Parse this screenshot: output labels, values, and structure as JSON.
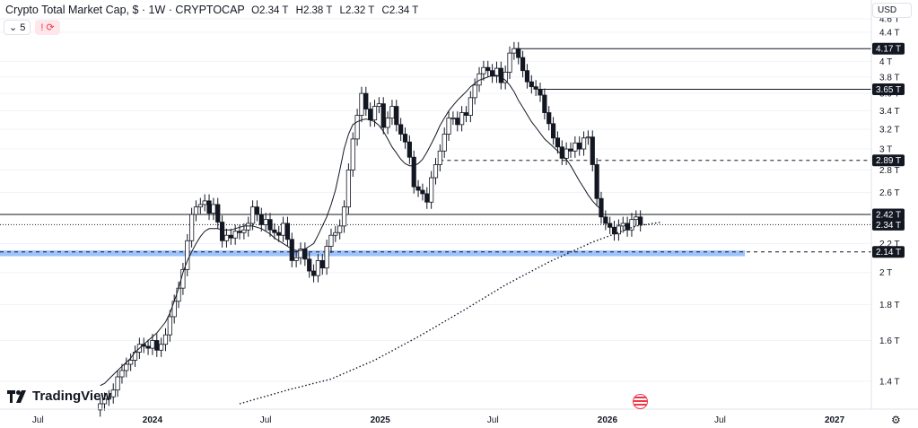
{
  "header": {
    "title": "Crypto Total Market Cap, $ · 1W · CRYPTOCAP",
    "open": "O2.34 T",
    "high": "H2.38 T",
    "low": "L2.32 T",
    "close": "C2.34 T"
  },
  "toolbar": {
    "indicator_count": "5",
    "alert_icon": "!"
  },
  "currency": "USD",
  "branding": "TradingView",
  "colors": {
    "up": "#131722",
    "down": "#131722",
    "price_label_bg": "#131722",
    "zone": "#4f8ff7",
    "grid": "#f0f3fa",
    "axis_text": "#131722"
  },
  "chart_data": {
    "type": "candlestick",
    "y_scale": "log",
    "ylim": [
      1.3,
      4.75
    ],
    "y_ticks": [
      {
        "value": 4.6,
        "label": "4.6 T"
      },
      {
        "value": 4.4,
        "label": "4.4 T"
      },
      {
        "value": 4.0,
        "label": "4 T"
      },
      {
        "value": 3.8,
        "label": "3.8 T"
      },
      {
        "value": 3.6,
        "label": "3.6 T"
      },
      {
        "value": 3.4,
        "label": "3.4 T"
      },
      {
        "value": 3.2,
        "label": "3.2 T"
      },
      {
        "value": 3.0,
        "label": "3 T"
      },
      {
        "value": 2.8,
        "label": "2.8 T"
      },
      {
        "value": 2.6,
        "label": "2.6 T"
      },
      {
        "value": 2.2,
        "label": "2.2 T"
      },
      {
        "value": 2.0,
        "label": "2 T"
      },
      {
        "value": 1.8,
        "label": "1.8 T"
      },
      {
        "value": 1.6,
        "label": "1.6 T"
      },
      {
        "value": 1.4,
        "label": "1.4 T"
      }
    ],
    "x_range": [
      "2023-05-01",
      "2027-05-15"
    ],
    "x_ticks": [
      {
        "date": "2023-07-01",
        "label": "Jul",
        "bold": false
      },
      {
        "date": "2024-01-01",
        "label": "2024",
        "bold": true
      },
      {
        "date": "2024-07-01",
        "label": "Jul",
        "bold": false
      },
      {
        "date": "2025-01-01",
        "label": "2025",
        "bold": true
      },
      {
        "date": "2025-07-01",
        "label": "Jul",
        "bold": false
      },
      {
        "date": "2026-01-01",
        "label": "2026",
        "bold": true
      },
      {
        "date": "2026-07-01",
        "label": "Jul",
        "bold": false
      },
      {
        "date": "2027-01-01",
        "label": "2027",
        "bold": true
      }
    ],
    "start_date": "2023-10-09",
    "closes": [
      1.3,
      1.32,
      1.33,
      1.36,
      1.42,
      1.45,
      1.48,
      1.5,
      1.54,
      1.58,
      1.57,
      1.56,
      1.6,
      1.55,
      1.58,
      1.63,
      1.73,
      1.82,
      1.9,
      2.02,
      2.22,
      2.42,
      2.48,
      2.5,
      2.53,
      2.43,
      2.5,
      2.36,
      2.22,
      2.26,
      2.24,
      2.29,
      2.28,
      2.3,
      2.35,
      2.48,
      2.42,
      2.34,
      2.38,
      2.3,
      2.28,
      2.26,
      2.35,
      2.23,
      2.08,
      2.1,
      2.16,
      2.09,
      2.01,
      1.98,
      2.08,
      2.03,
      2.18,
      2.26,
      2.28,
      2.33,
      2.48,
      2.8,
      3.1,
      3.35,
      3.6,
      3.42,
      3.3,
      3.45,
      3.48,
      3.22,
      3.32,
      3.45,
      3.25,
      3.15,
      3.07,
      2.92,
      2.65,
      2.62,
      2.59,
      2.52,
      2.73,
      2.85,
      2.98,
      3.15,
      3.32,
      3.32,
      3.25,
      3.38,
      3.35,
      3.55,
      3.7,
      3.84,
      3.92,
      3.88,
      3.81,
      3.91,
      3.73,
      3.86,
      4.11,
      4.17,
      4.05,
      3.88,
      3.74,
      3.68,
      3.65,
      3.58,
      3.38,
      3.26,
      3.11,
      3.02,
      2.91,
      3.0,
      2.98,
      3.06,
      3.0,
      3.11,
      3.12,
      2.85,
      2.55,
      2.4,
      2.35,
      2.32,
      2.27,
      2.33,
      2.35,
      2.3,
      2.38,
      2.4,
      2.34
    ],
    "sma_short": [
      1.38,
      1.39,
      1.41,
      1.43,
      1.45,
      1.47,
      1.49,
      1.51,
      1.54,
      1.56,
      1.58,
      1.6,
      1.62,
      1.64,
      1.67,
      1.7,
      1.75,
      1.82,
      1.9,
      2.0,
      2.08,
      2.14,
      2.2,
      2.25,
      2.29,
      2.31,
      2.31,
      2.31,
      2.3,
      2.3,
      2.3,
      2.31,
      2.32,
      2.33,
      2.33,
      2.33,
      2.32,
      2.31,
      2.29,
      2.27,
      2.24,
      2.22,
      2.2,
      2.18,
      2.16,
      2.15,
      2.15,
      2.16,
      2.18,
      2.2,
      2.26,
      2.33,
      2.4,
      2.5,
      2.62,
      2.8,
      3.0,
      3.15,
      3.25,
      3.28,
      3.3,
      3.31,
      3.3,
      3.28,
      3.24,
      3.18,
      3.1,
      3.02,
      2.96,
      2.9,
      2.86,
      2.84,
      2.84,
      2.86,
      2.9,
      2.97,
      3.05,
      3.14,
      3.24,
      3.32,
      3.4,
      3.46,
      3.52,
      3.57,
      3.62,
      3.68,
      3.72,
      3.76,
      3.78,
      3.8,
      3.82,
      3.82,
      3.8,
      3.76,
      3.7,
      3.62,
      3.52,
      3.44,
      3.36,
      3.28,
      3.22,
      3.16,
      3.1,
      3.06,
      3.02,
      2.98,
      2.94,
      2.9,
      2.84,
      2.77,
      2.7,
      2.64,
      2.58,
      2.53,
      2.49,
      2.46
    ],
    "sma_short_start_index": 0,
    "sma_long": [
      {
        "date": "2024-05-20",
        "value": 1.3
      },
      {
        "date": "2024-08-05",
        "value": 1.36
      },
      {
        "date": "2024-10-14",
        "value": 1.41
      },
      {
        "date": "2024-12-23",
        "value": 1.5
      },
      {
        "date": "2025-03-03",
        "value": 1.62
      },
      {
        "date": "2025-05-12",
        "value": 1.76
      },
      {
        "date": "2025-07-21",
        "value": 1.92
      },
      {
        "date": "2025-09-29",
        "value": 2.07
      },
      {
        "date": "2025-12-08",
        "value": 2.21
      },
      {
        "date": "2026-02-16",
        "value": 2.33
      },
      {
        "date": "2026-03-30",
        "value": 2.36
      }
    ],
    "horizontal_lines": [
      {
        "value": 4.17,
        "label": "4.17 T",
        "style": "solid",
        "from": "2025-08-04"
      },
      {
        "value": 3.65,
        "label": "3.65 T",
        "style": "solid",
        "from": "2025-09-15"
      },
      {
        "value": 2.89,
        "label": "2.89 T",
        "style": "dashed",
        "from": "2025-04-07"
      },
      {
        "value": 2.42,
        "label": "2.42 T",
        "style": "solid",
        "from": "2023-05-01"
      },
      {
        "value": 2.34,
        "label": "2.34 T",
        "style": "dotted",
        "from": "2023-05-01"
      },
      {
        "value": 2.14,
        "label": "2.14 T",
        "style": "dashed",
        "from": "2023-05-01"
      }
    ],
    "zone": {
      "from": "2023-05-01",
      "to": "2026-08-10",
      "low": 2.11,
      "high": 2.15
    }
  }
}
